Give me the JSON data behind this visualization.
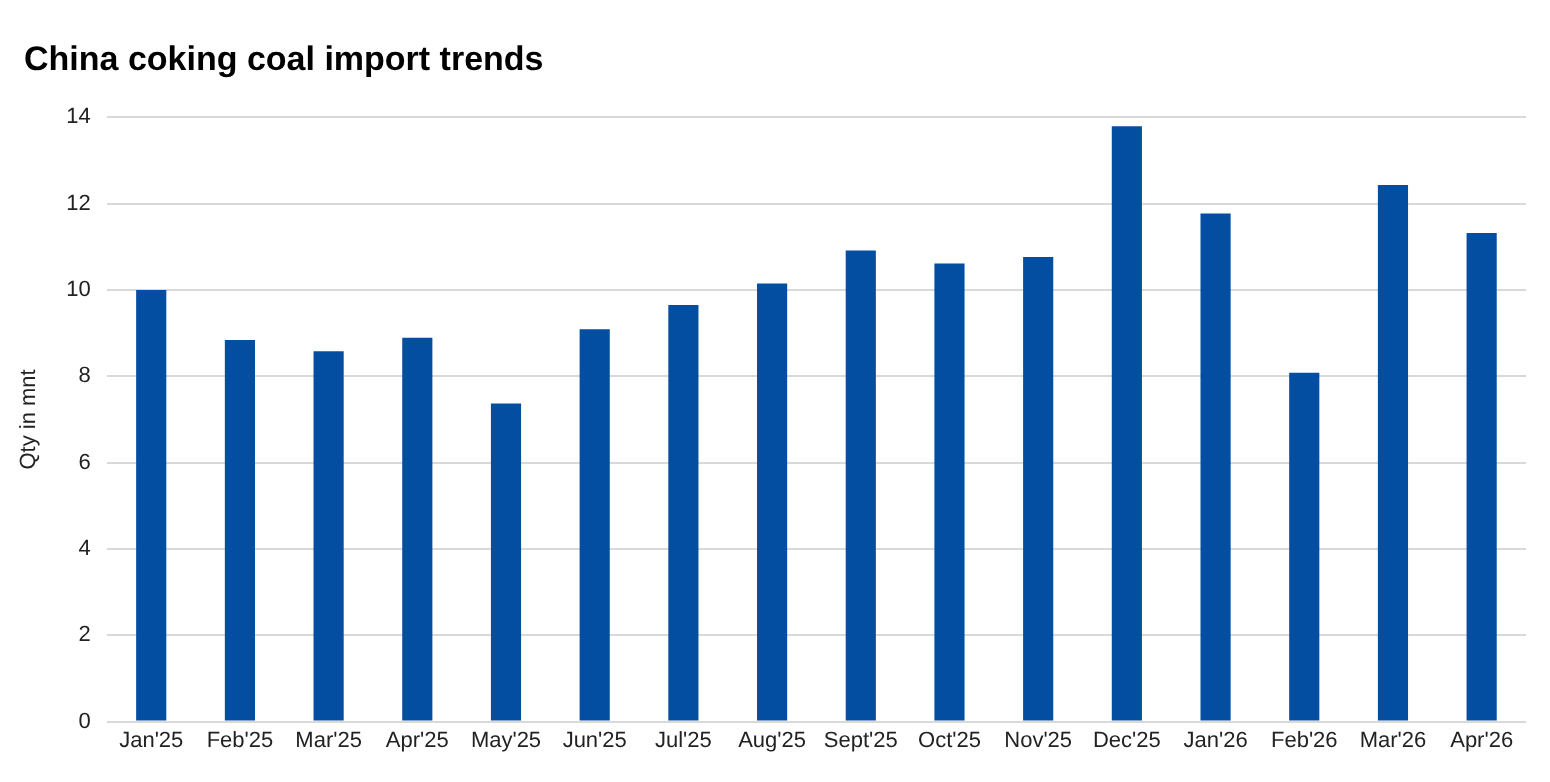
{
  "chart_data": {
    "type": "bar",
    "title": "China coking coal import trends",
    "ylabel": "Qty in mnt",
    "categories": [
      "Jan'25",
      "Feb'25",
      "Mar'25",
      "Apr'25",
      "May'25",
      "Jun'25",
      "Jul'25",
      "Aug'25",
      "Sept'25",
      "Oct'25",
      "Nov'25",
      "Dec'25",
      "Jan'26",
      "Feb'26",
      "Mar'26",
      "Apr'26"
    ],
    "values": [
      10.0,
      8.84,
      8.58,
      8.89,
      7.37,
      9.09,
      9.65,
      10.15,
      10.91,
      10.61,
      10.76,
      13.79,
      11.77,
      8.08,
      12.43,
      11.32
    ],
    "color": "#044ea1",
    "ylim": [
      0,
      14
    ],
    "yticks": [
      0,
      2,
      4,
      6,
      8,
      10,
      12,
      14
    ],
    "grid": "y",
    "legend": false
  }
}
